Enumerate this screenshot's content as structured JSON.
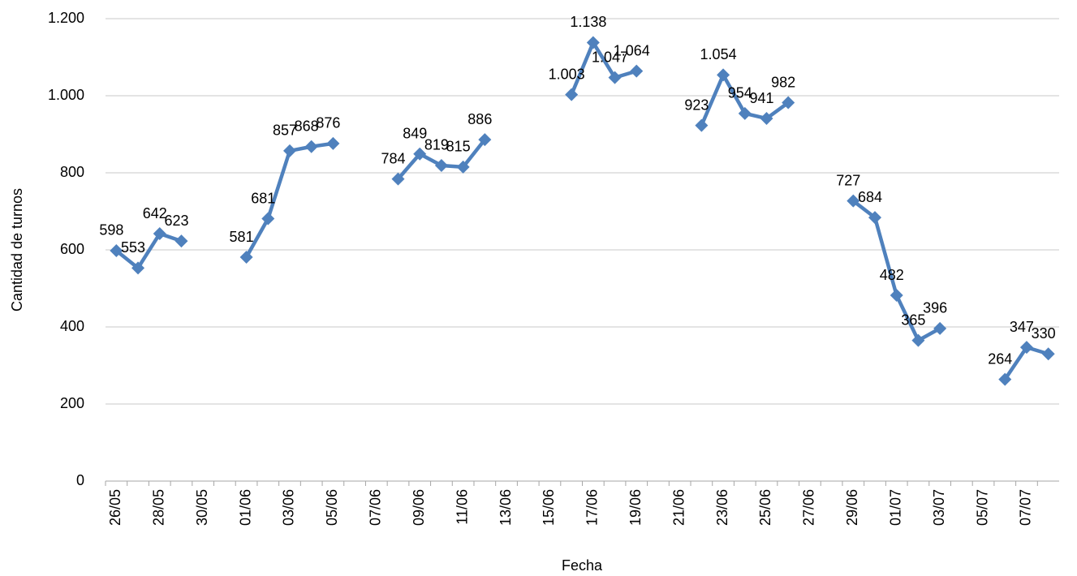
{
  "chart_data": {
    "type": "line",
    "x_label": "Fecha",
    "y_label": "Cantidad de turnos",
    "categories": [
      "26/05",
      null,
      "28/05",
      null,
      "30/05",
      null,
      "01/06",
      null,
      "03/06",
      null,
      "05/06",
      null,
      "07/06",
      null,
      "09/06",
      null,
      "11/06",
      null,
      "13/06",
      null,
      "15/06",
      null,
      "17/06",
      null,
      "19/06",
      null,
      "21/06",
      null,
      "23/06",
      null,
      "25/06",
      null,
      "27/06",
      null,
      "29/06",
      null,
      "01/07",
      null,
      "03/07",
      null,
      "05/07",
      null,
      "07/07",
      null
    ],
    "values": [
      598,
      553,
      642,
      623,
      null,
      null,
      581,
      681,
      857,
      868,
      876,
      null,
      null,
      784,
      849,
      819,
      815,
      886,
      null,
      null,
      null,
      1003,
      1138,
      1047,
      1064,
      null,
      null,
      923,
      1054,
      954,
      941,
      982,
      null,
      null,
      727,
      684,
      482,
      365,
      396,
      null,
      null,
      264,
      347,
      330
    ],
    "value_labels": [
      "598",
      "553",
      "642",
      "623",
      null,
      null,
      "581",
      "681",
      "857",
      "868",
      "876",
      null,
      null,
      "784",
      "849",
      "819",
      "815",
      "886",
      null,
      null,
      null,
      "1.003",
      "1.138",
      "1.047",
      "1.064",
      null,
      null,
      "923",
      "1.054",
      "954",
      "941",
      "982",
      null,
      null,
      "727",
      "684",
      "482",
      "365",
      "396",
      null,
      null,
      "264",
      "347",
      "330"
    ],
    "color": "#4f81bd",
    "ylim": [
      0,
      1200
    ],
    "yticks": [
      0,
      200,
      400,
      600,
      800,
      {
        "value": 1000,
        "label": "1.000"
      },
      {
        "value": 1200,
        "label": "1.200"
      }
    ],
    "grid": true
  }
}
